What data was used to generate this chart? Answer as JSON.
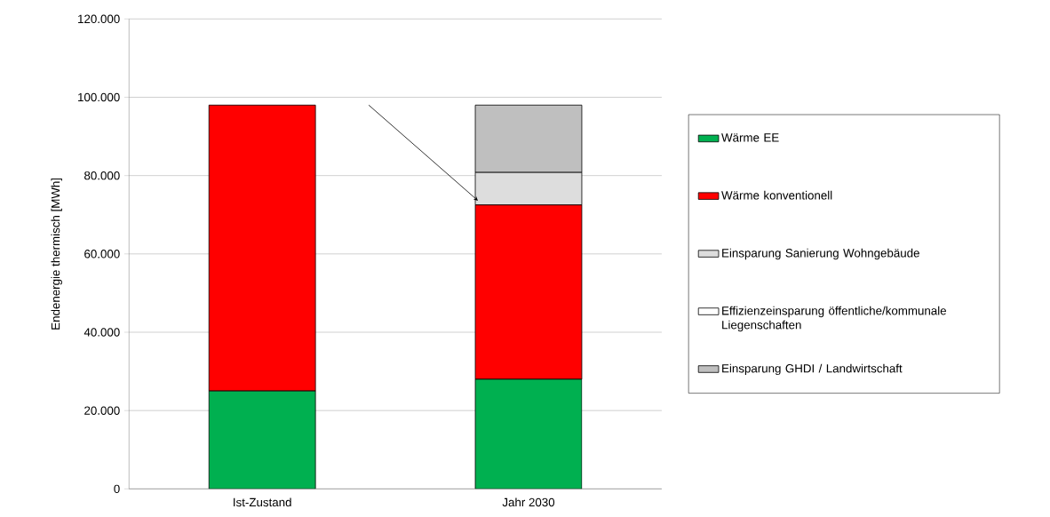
{
  "chart_data": {
    "type": "bar",
    "stacked": true,
    "ylabel": "Endenergie  thermisch [MWh]",
    "categories": [
      "Ist-Zustand",
      "Jahr 2030"
    ],
    "series": [
      {
        "name": "Wärme EE",
        "color": "#00b050",
        "values": [
          25000,
          28000
        ]
      },
      {
        "name": "Wärme konventionell",
        "color": "#ff0000",
        "values": [
          73000,
          44500
        ]
      },
      {
        "name": "Einsparung Sanierung Wohngebäude",
        "color": "#dddddd",
        "values": [
          null,
          8300
        ]
      },
      {
        "name": "Effizienzeinsparung öffentliche/kommunale Liegenschaften",
        "color": "#ffffff",
        "values": [
          null,
          null
        ]
      },
      {
        "name": "Einsparung GHDI / Landwirtschaft",
        "color": "#bfbfbf",
        "values": [
          null,
          17200
        ]
      }
    ],
    "ylim": [
      0,
      120000
    ],
    "yticks": [
      {
        "value": 0,
        "label": "0"
      },
      {
        "value": 20000,
        "label": "20.000"
      },
      {
        "value": 40000,
        "label": "40.000"
      },
      {
        "value": 60000,
        "label": "60.000"
      },
      {
        "value": 80000,
        "label": "80.000"
      },
      {
        "value": 100000,
        "label": "100.000"
      },
      {
        "value": 120000,
        "label": "120.000"
      }
    ],
    "grid": "y",
    "legend": "right"
  }
}
